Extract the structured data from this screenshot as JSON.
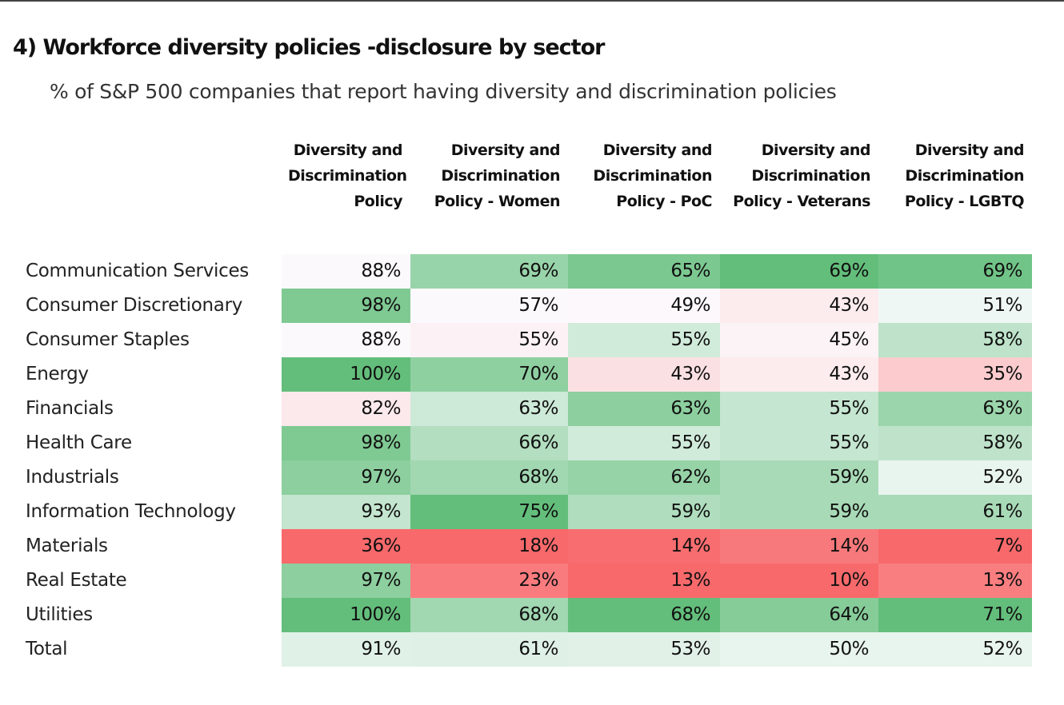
{
  "chart_data": {
    "type": "heatmap",
    "title": "4)  Workforce diversity policies -disclosure by sector",
    "subtitle": "% of S&P 500 companies that report having diversity and discrimination policies",
    "categories": [
      "Communication Services",
      "Consumer Discretionary",
      "Consumer Staples",
      "Energy",
      "Financials",
      "Health Care",
      "Industrials",
      "Information Technology",
      "Materials",
      "Real Estate",
      "Utilities",
      "Total"
    ],
    "color_scale": [
      "#f8696b",
      "#fcfcff",
      "#63be7b"
    ],
    "series": [
      {
        "name": "Diversity and Discrimination Policy",
        "values": [
          88,
          98,
          88,
          100,
          82,
          98,
          97,
          93,
          36,
          97,
          100,
          91
        ],
        "value_labels": [
          "88%",
          "98%",
          "88%",
          "100%",
          "82%",
          "98%",
          "97%",
          "93%",
          "36%",
          "97%",
          "100%",
          "91%"
        ]
      },
      {
        "name": "Diversity and Discrimination Policy - Women",
        "values": [
          69,
          57,
          55,
          70,
          63,
          66,
          68,
          75,
          18,
          23,
          68,
          61
        ],
        "value_labels": [
          "69%",
          "57%",
          "55%",
          "70%",
          "63%",
          "66%",
          "68%",
          "75%",
          "18%",
          "23%",
          "68%",
          "61%"
        ]
      },
      {
        "name": "Diversity and Discrimination Policy - PoC",
        "values": [
          65,
          49,
          55,
          43,
          63,
          55,
          62,
          59,
          14,
          13,
          68,
          53
        ],
        "value_labels": [
          "65%",
          "49%",
          "55%",
          "43%",
          "63%",
          "55%",
          "62%",
          "59%",
          "14%",
          "13%",
          "68%",
          "53%"
        ]
      },
      {
        "name": "Diversity and Discrimination Policy - Veterans",
        "values": [
          69,
          43,
          45,
          43,
          55,
          55,
          59,
          59,
          14,
          10,
          64,
          50
        ],
        "value_labels": [
          "69%",
          "43%",
          "45%",
          "43%",
          "55%",
          "55%",
          "59%",
          "59%",
          "14%",
          "10%",
          "64%",
          "50%"
        ]
      },
      {
        "name": "Diversity and Discrimination Policy - LGBTQ",
        "values": [
          69,
          51,
          58,
          35,
          63,
          58,
          52,
          61,
          7,
          13,
          71,
          52
        ],
        "value_labels": [
          "69%",
          "51%",
          "58%",
          "35%",
          "63%",
          "58%",
          "52%",
          "61%",
          "7%",
          "13%",
          "71%",
          "52%"
        ]
      }
    ]
  }
}
